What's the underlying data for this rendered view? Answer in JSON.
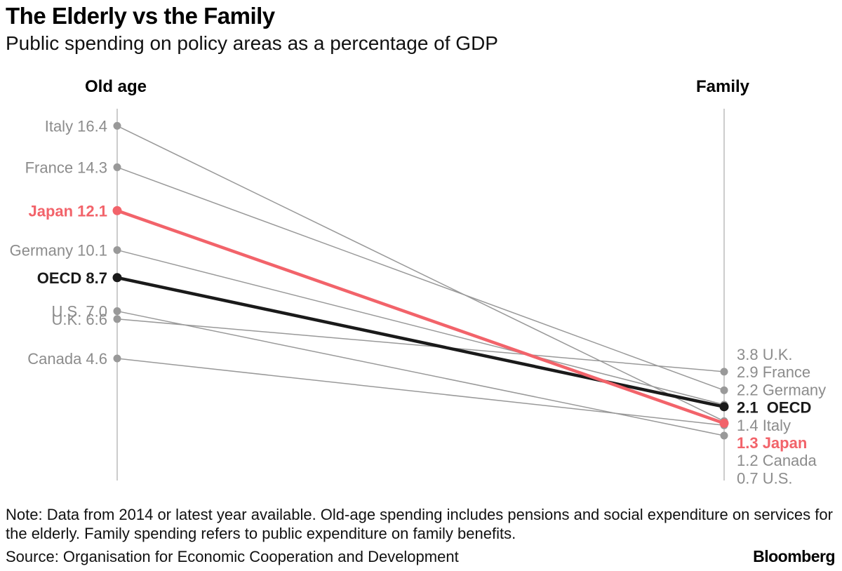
{
  "title": "The Elderly vs the Family",
  "subtitle": "Public spending on policy areas as a percentage of GDP",
  "note": "Note: Data from 2014 or latest year available. Old-age spending includes pensions and social expenditure on services for the elderly. Family spending refers to public expenditure on family benefits.",
  "source": "Source: Organisation for Economic Cooperation and Development",
  "brand": "Bloomberg",
  "colors": {
    "highlight": "#f2636a",
    "oecd": "#1a1a1a",
    "other": "#999999",
    "axis": "#cccccc",
    "label_gray": "#8c8c8c"
  },
  "chart_data": {
    "type": "slope",
    "left_label": "Old age",
    "right_label": "Family",
    "series": [
      {
        "name": "Italy",
        "left": 16.4,
        "right": 1.4,
        "left_text": "Italy 16.4",
        "right_text": "1.4 Italy",
        "style": "other"
      },
      {
        "name": "France",
        "left": 14.3,
        "right": 2.9,
        "left_text": "France 14.3",
        "right_text": "2.9 France",
        "style": "other"
      },
      {
        "name": "Japan",
        "left": 12.1,
        "right": 1.3,
        "left_text": "Japan 12.1",
        "right_text": "1.3 Japan",
        "style": "highlight"
      },
      {
        "name": "Germany",
        "left": 10.1,
        "right": 2.2,
        "left_text": "Germany 10.1",
        "right_text": "2.2 Germany",
        "style": "other"
      },
      {
        "name": "OECD",
        "left": 8.7,
        "right": 2.1,
        "left_text": "OECD 8.7",
        "right_text": "2.1  OECD",
        "style": "oecd"
      },
      {
        "name": "U.S.",
        "left": 7.0,
        "right": 0.7,
        "left_text": "U.S. 7.0",
        "right_text": "0.7 U.S.",
        "style": "other"
      },
      {
        "name": "U.K.",
        "left": 6.6,
        "right": 3.8,
        "left_text": "U.K. 6.6",
        "right_text": "3.8 U.K.",
        "style": "other"
      },
      {
        "name": "Canada",
        "left": 4.6,
        "right": 1.2,
        "left_text": "Canada 4.6",
        "right_text": "1.2 Canada",
        "style": "other"
      }
    ]
  }
}
